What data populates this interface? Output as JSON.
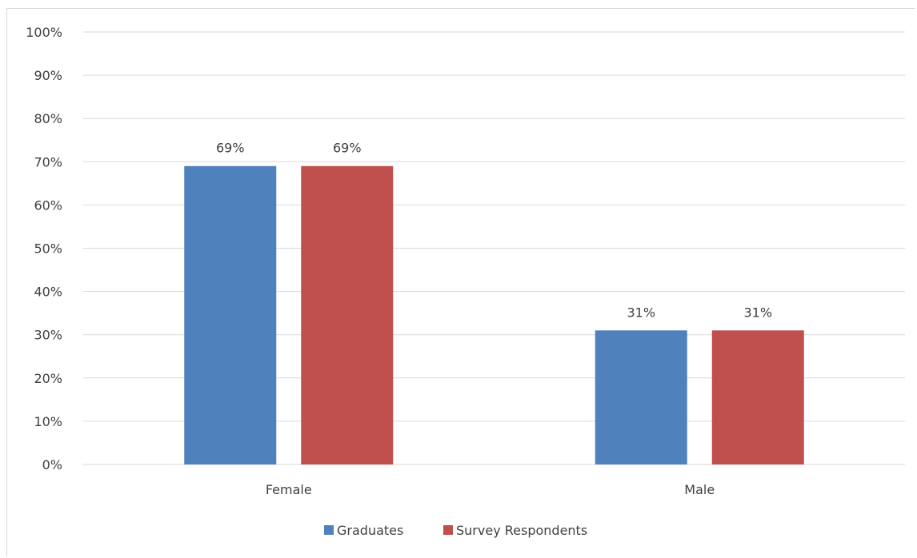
{
  "chart_data": {
    "type": "bar",
    "categories": [
      "Female",
      "Male"
    ],
    "series": [
      {
        "name": "Graduates",
        "values": [
          69,
          31
        ],
        "color": "#4f81bd"
      },
      {
        "name": "Survey Respondents",
        "values": [
          69,
          31
        ],
        "color": "#c0504d"
      }
    ],
    "data_labels": [
      [
        "69%",
        "31%"
      ],
      [
        "69%",
        "31%"
      ]
    ],
    "ylim": [
      0,
      100
    ],
    "yticks": [
      0,
      10,
      20,
      30,
      40,
      50,
      60,
      70,
      80,
      90,
      100
    ],
    "ytick_labels": [
      "0%",
      "10%",
      "20%",
      "30%",
      "40%",
      "50%",
      "60%",
      "70%",
      "80%",
      "90%",
      "100%"
    ],
    "title": "",
    "xlabel": "",
    "ylabel": "",
    "grid": true,
    "legend_position": "bottom",
    "gridline_color": "#d9d9d9"
  }
}
